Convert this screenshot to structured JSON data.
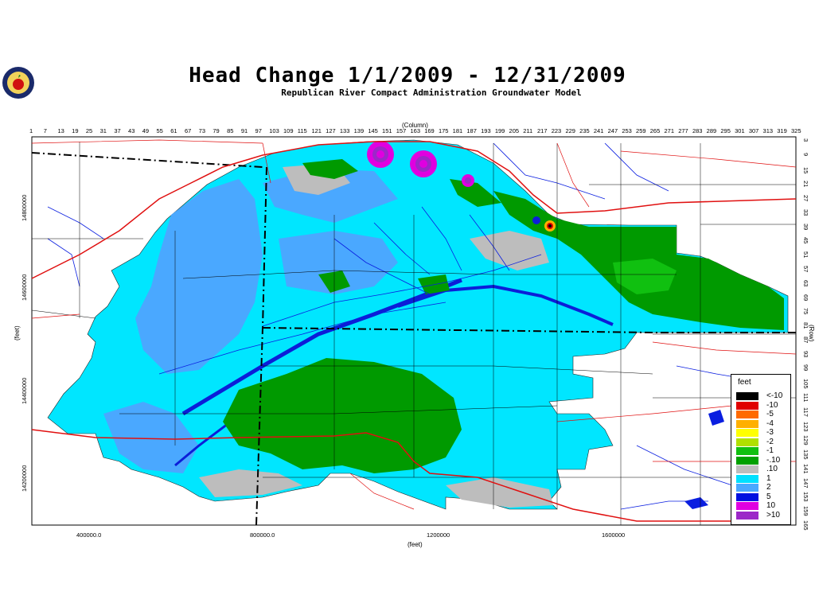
{
  "title": "Head Change 1/1/2009 - 12/31/2009",
  "subtitle": "Republican River Compact Administration Groundwater Model",
  "top_axis": {
    "label": "(Column)",
    "ticks": [
      "1",
      "7",
      "13",
      "19",
      "25",
      "31",
      "37",
      "43",
      "49",
      "55",
      "61",
      "67",
      "73",
      "79",
      "85",
      "91",
      "97",
      "103",
      "109",
      "115",
      "121",
      "127",
      "133",
      "139",
      "145",
      "151",
      "157",
      "163",
      "169",
      "175",
      "181",
      "187",
      "193",
      "199",
      "205",
      "211",
      "217",
      "223",
      "229",
      "235",
      "241",
      "247",
      "253",
      "259",
      "265",
      "271",
      "277",
      "283",
      "289",
      "295",
      "301",
      "307",
      "313",
      "319",
      "325"
    ]
  },
  "right_axis": {
    "label": "(Row)",
    "ticks": [
      "3",
      "9",
      "15",
      "21",
      "27",
      "33",
      "39",
      "45",
      "51",
      "57",
      "63",
      "69",
      "75",
      "81",
      "87",
      "93",
      "99",
      "105",
      "111",
      "117",
      "123",
      "129",
      "135",
      "141",
      "147",
      "153",
      "159",
      "165"
    ]
  },
  "bottom_axis": {
    "label": "(feet)",
    "ticks": [
      "400000.0",
      "800000.0",
      "1200000",
      "1600000"
    ]
  },
  "left_axis": {
    "label": "(feet)",
    "ticks": [
      "14800000",
      "14600000",
      "14400000",
      "14200000"
    ]
  },
  "legend": {
    "title": "feet",
    "items": [
      {
        "label": "<-10",
        "color": "#000000"
      },
      {
        "label": "-10",
        "color": "#e00000"
      },
      {
        "label": "-5",
        "color": "#ff6a00"
      },
      {
        "label": "-4",
        "color": "#ffb000"
      },
      {
        "label": "-3",
        "color": "#ffff00"
      },
      {
        "label": "-2",
        "color": "#b0e000"
      },
      {
        "label": "-1",
        "color": "#10c010"
      },
      {
        "label": "-.10",
        "color": "#00a000"
      },
      {
        "label": ".10",
        "color": "#bdbdbd"
      },
      {
        "label": "1",
        "color": "#00e0ff"
      },
      {
        "label": "2",
        "color": "#4aa8ff"
      },
      {
        "label": "5",
        "color": "#0010e0"
      },
      {
        "label": "10",
        "color": "#e000e0"
      },
      {
        "label": ">10",
        "color": "#9c28c8"
      }
    ]
  },
  "colors": {
    "domain_fill": "#00e6ff",
    "medium_blue": "#4aa8ff",
    "dark_blue": "#0c1ed8",
    "gray": "#bdbdbd",
    "green": "#009a00",
    "roads": "#e01010",
    "rivers": "#0a1ee0"
  }
}
